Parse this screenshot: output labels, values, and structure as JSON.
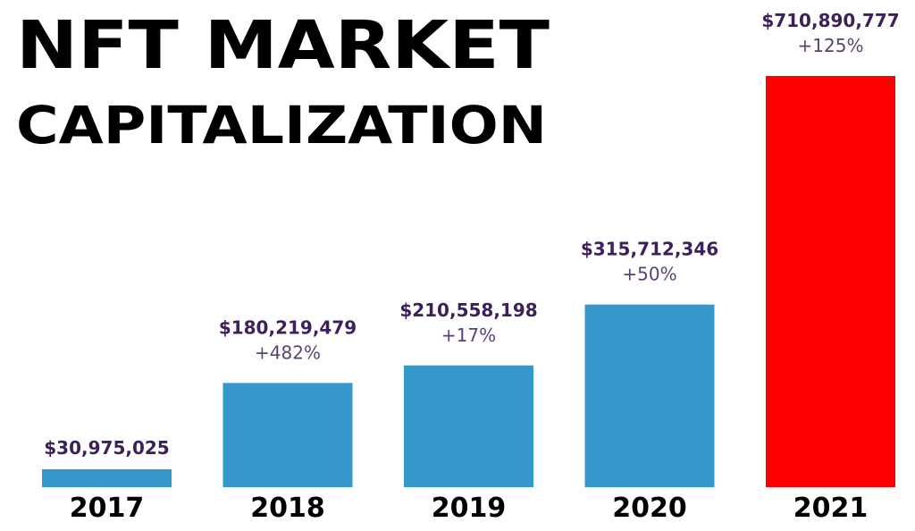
{
  "chart_data": {
    "type": "bar",
    "title_lines": [
      "NFT MARKET",
      "CAPITALIZATION"
    ],
    "categories": [
      "2017",
      "2018",
      "2019",
      "2020",
      "2021"
    ],
    "values": [
      30975025,
      180219479,
      210558198,
      315712346,
      710890777
    ],
    "value_labels": [
      "$30,975,025",
      "$180,219,479",
      "$210,558,198",
      "$315,712,346",
      "$710,890,777"
    ],
    "growth_labels": [
      null,
      "+482%",
      "+17%",
      "+50%",
      "+125%"
    ],
    "colors": [
      "#3498cc",
      "#3498cc",
      "#3498cc",
      "#3498cc",
      "#ff0000"
    ],
    "label_color": "#3d1f5c"
  }
}
